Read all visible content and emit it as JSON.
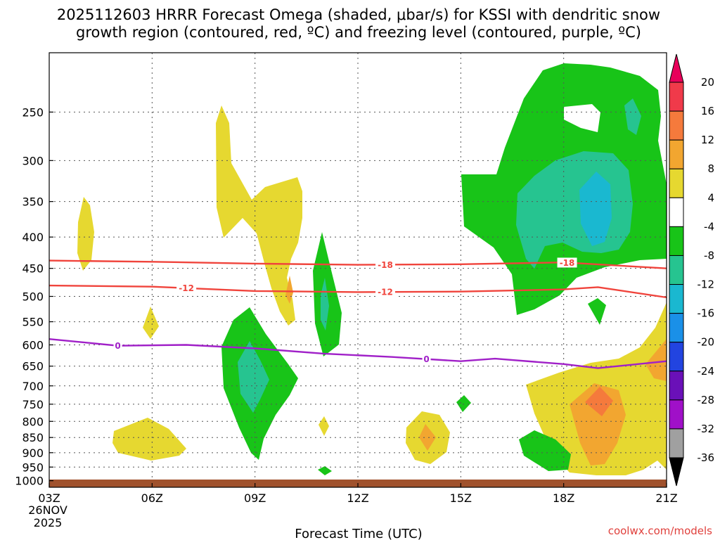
{
  "chart_data": {
    "type": "time-height cross section",
    "title_line1": "2025112603 HRRR Forecast Omega (shaded, μbar/s) for KSSI with dendritic snow",
    "title_line2": "growth region (contoured, red, ºC) and freezing level (contoured, purple, ºC)",
    "xlabel": "Forecast Time (UTC)",
    "x_ticks": [
      {
        "hours": 0,
        "label": "03Z"
      },
      {
        "hours": 3,
        "label": "06Z"
      },
      {
        "hours": 6,
        "label": "09Z"
      },
      {
        "hours": 9,
        "label": "12Z"
      },
      {
        "hours": 12,
        "label": "15Z"
      },
      {
        "hours": 15,
        "label": "18Z"
      },
      {
        "hours": 18,
        "label": "21Z"
      }
    ],
    "x_start_date": "26NOV",
    "x_start_year": "2025",
    "xlim": [
      0,
      18
    ],
    "y_ticks": [
      250,
      300,
      350,
      400,
      450,
      500,
      550,
      600,
      650,
      700,
      750,
      800,
      850,
      900,
      950,
      1000
    ],
    "ylim": [
      1025,
      200
    ],
    "colorbar": {
      "labels": [
        "20",
        "16",
        "12",
        "8",
        "4",
        "-4",
        "-8",
        "-12",
        "-16",
        "-20",
        "-24",
        "-28",
        "-32",
        "-36"
      ],
      "colors": [
        "#e8005a",
        "#f03a4a",
        "#f57a3c",
        "#f2a630",
        "#e6d830",
        "#ffffff",
        "#18c418",
        "#26c490",
        "#1ab8d0",
        "#1a90e8",
        "#2244e0",
        "#6a10b8",
        "#a010c8",
        "#a0a0a0",
        "#000000"
      ]
    },
    "contours": [
      {
        "name": "-18",
        "color": "#f0443c",
        "points": [
          [
            0,
            437
          ],
          [
            3,
            439
          ],
          [
            6,
            442
          ],
          [
            9,
            444
          ],
          [
            12,
            443
          ],
          [
            15,
            440
          ],
          [
            18,
            450
          ]
        ],
        "labels": [
          {
            "hours": 9.8,
            "text": "-18"
          },
          {
            "hours": 15.1,
            "text": "-18"
          }
        ]
      },
      {
        "name": "-12",
        "color": "#f0443c",
        "points": [
          [
            0,
            480
          ],
          [
            3,
            482
          ],
          [
            6,
            490
          ],
          [
            9,
            492
          ],
          [
            12,
            491
          ],
          [
            15,
            487
          ],
          [
            16,
            483
          ],
          [
            18,
            502
          ]
        ],
        "labels": [
          {
            "hours": 4,
            "text": "-12"
          },
          {
            "hours": 9.8,
            "text": "-12"
          }
        ]
      },
      {
        "name": "0",
        "color": "#a020c8",
        "points": [
          [
            0,
            587
          ],
          [
            2,
            602
          ],
          [
            4,
            600
          ],
          [
            6,
            608
          ],
          [
            8,
            620
          ],
          [
            10,
            628
          ],
          [
            12,
            638
          ],
          [
            13,
            632
          ],
          [
            15,
            645
          ],
          [
            16,
            655
          ],
          [
            18,
            638
          ]
        ],
        "labels": [
          {
            "hours": 2,
            "text": "0"
          },
          {
            "hours": 11,
            "text": "0"
          }
        ]
      }
    ],
    "omega_shading": [
      {
        "level": "4 to 8",
        "color": "#e6d830",
        "areas": [
          "04Z 355-470 hPa",
          "05-06Z 820-940 hPa",
          "06Z 560-610 hPa",
          "08-10Z 265-460 hPa",
          "10Z 460-560 hPa",
          "11Z 820-870 hPa",
          "13-14Z 810-940 hPa",
          "17-21Z 540-975 hPa"
        ]
      },
      {
        "level": "8 to 12",
        "color": "#f2a630",
        "areas": [
          "10Z 470-500 hPa",
          "14Z 850-890 hPa",
          "18-19Z 700-900 hPa",
          "21Z 620-700 hPa"
        ]
      },
      {
        "level": "12 to 16",
        "color": "#f57a3c",
        "areas": [
          "19Z 720-800 hPa"
        ]
      },
      {
        "level": "-4 to -8",
        "color": "#18c418",
        "areas": [
          "08-10Z 530-940 hPa",
          "11Z 400-630 hPa",
          "11Z 960-1000 hPa",
          "15Z 745-790 hPa",
          "16-18Z 850-960 hPa",
          "15-21Z 215-540 hPa",
          "19Z 510-570 hPa"
        ]
      },
      {
        "level": "-8 to -12",
        "color": "#26c490",
        "areas": [
          "09Z 610-790 hPa",
          "11Z 460-570 hPa",
          "17-20Z 300-480 hPa",
          "20Z 230-285 hPa"
        ]
      },
      {
        "level": "-12 to -16",
        "color": "#1ab8d0",
        "areas": [
          "19Z 340-420 hPa"
        ]
      }
    ],
    "surface_band": "ground"
  },
  "credit": "coolwx.com/models"
}
